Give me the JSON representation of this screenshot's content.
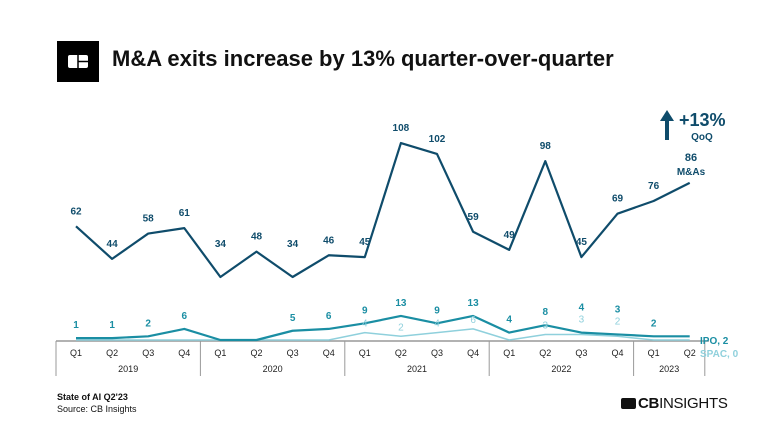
{
  "title": "M&A exits increase by 13% quarter-over-quarter",
  "footer": {
    "report": "State of AI Q2'23",
    "source": "Source: CB Insights"
  },
  "brand": {
    "bold": "CB",
    "rest": "INSIGHTS"
  },
  "callout": {
    "change": "+13%",
    "change_label": "QoQ",
    "latest_value": "86",
    "latest_label": "M&As",
    "arrow_icon": "arrow-up-icon"
  },
  "colors": {
    "ma": "#0f4c6b",
    "ipo": "#1a8ea3",
    "spac": "#8fd0dc",
    "axis": "#999999"
  },
  "chart_data": {
    "type": "line",
    "quarters": [
      "Q1",
      "Q2",
      "Q3",
      "Q4",
      "Q1",
      "Q2",
      "Q3",
      "Q4",
      "Q1",
      "Q2",
      "Q3",
      "Q4",
      "Q1",
      "Q2",
      "Q3",
      "Q4",
      "Q1",
      "Q2"
    ],
    "years": [
      {
        "label": "2019",
        "quarters": 4
      },
      {
        "label": "2020",
        "quarters": 4
      },
      {
        "label": "2021",
        "quarters": 4
      },
      {
        "label": "2022",
        "quarters": 4
      },
      {
        "label": "2023",
        "quarters": 2
      }
    ],
    "series": [
      {
        "key": "ma",
        "values": [
          62,
          44,
          58,
          61,
          34,
          48,
          34,
          46,
          45,
          108,
          102,
          59,
          49,
          98,
          45,
          69,
          76,
          86
        ]
      },
      {
        "key": "ipo",
        "name": "IPO, 2",
        "values": [
          1,
          1,
          2,
          6,
          0,
          0,
          5,
          6,
          9,
          13,
          9,
          13,
          4,
          8,
          4,
          3,
          2,
          2
        ]
      },
      {
        "key": "spac",
        "name": "SPAC, 0",
        "values": [
          0,
          0,
          0,
          0,
          0,
          0,
          0,
          0,
          4,
          2,
          4,
          6,
          0,
          3,
          3,
          2,
          0,
          0
        ]
      }
    ],
    "ipo_labels_shown": [
      true,
      true,
      true,
      true,
      false,
      false,
      true,
      true,
      true,
      true,
      true,
      true,
      true,
      true,
      true,
      true,
      true,
      false
    ],
    "spac_labels_shown": [
      false,
      false,
      false,
      false,
      false,
      false,
      false,
      false,
      true,
      true,
      true,
      true,
      false,
      true,
      true,
      true,
      false,
      false
    ],
    "ma_labels_shown": [
      true,
      true,
      true,
      true,
      true,
      true,
      true,
      true,
      true,
      true,
      true,
      true,
      true,
      true,
      true,
      true,
      true,
      false
    ]
  }
}
